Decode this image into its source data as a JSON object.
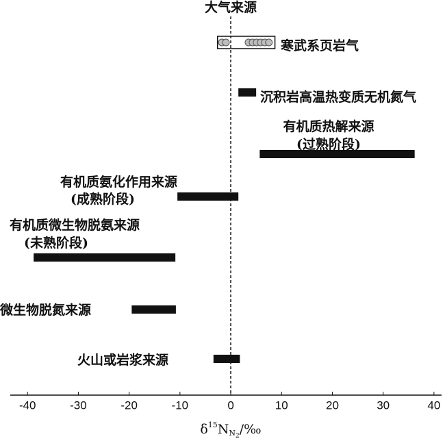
{
  "chart_data": {
    "type": "range",
    "annotation": "大气来源",
    "xlabel": [
      "δ",
      "15",
      "N",
      "N",
      "2",
      "/‰"
    ],
    "xlim": [
      -43.4,
      41.5
    ],
    "xticks": [
      -40,
      -30,
      -20,
      -10,
      0,
      10,
      20,
      30,
      40
    ],
    "reference_line": 0,
    "color": "#111111",
    "ranges": [
      {
        "label": [
          "寒武系页岩气"
        ],
        "low": -2.6,
        "high": 8.7,
        "style": "box",
        "points": [
          -1.75,
          -0.95,
          3.5,
          4.3,
          5.1,
          5.9,
          6.7,
          7.5
        ]
      },
      {
        "label": [
          "沉积岩高温热变质无机氮气"
        ],
        "low": 1.5,
        "high": 5.0,
        "style": "bar"
      },
      {
        "label": [
          "有机质热解来源",
          "(过熟阶段)"
        ],
        "low": 5.7,
        "high": 36.2,
        "style": "bar"
      },
      {
        "label": [
          "有机质氨化作用来源",
          "(成熟阶段)"
        ],
        "low": -10.5,
        "high": 1.5,
        "style": "bar"
      },
      {
        "label": [
          "有机质微生物脱氨来源",
          "(未熟阶段)"
        ],
        "low": -38.8,
        "high": -10.9,
        "style": "bar"
      },
      {
        "label": [
          "微生物脱氮来源"
        ],
        "low": -19.5,
        "high": -10.8,
        "style": "bar"
      },
      {
        "label": [
          "火山或岩浆来源"
        ],
        "low": -3.4,
        "high": 1.8,
        "style": "bar"
      }
    ]
  }
}
